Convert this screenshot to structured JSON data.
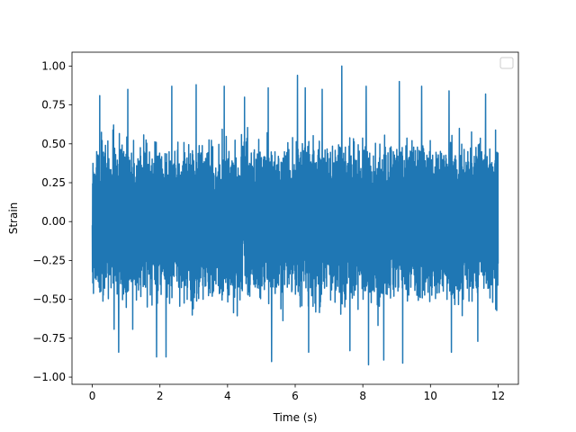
{
  "chart_data": {
    "type": "line",
    "title": "",
    "xlabel": "Time (s)",
    "ylabel": "Strain",
    "xlim": [
      -0.6,
      12.6
    ],
    "ylim": [
      -1.046,
      1.089
    ],
    "x_ticks": [
      0,
      2,
      4,
      6,
      8,
      10,
      12
    ],
    "x_tick_labels": [
      "0",
      "2",
      "4",
      "6",
      "8",
      "10",
      "12"
    ],
    "y_ticks": [
      -1.0,
      -0.75,
      -0.5,
      -0.25,
      0.0,
      0.25,
      0.5,
      0.75,
      1.0
    ],
    "y_tick_labels": [
      "−1.00",
      "−0.75",
      "−0.50",
      "−0.25",
      "0.00",
      "0.25",
      "0.50",
      "0.75",
      "1.00"
    ],
    "grid": false,
    "legend": {
      "placement": "upper right",
      "entries": []
    },
    "series": [
      {
        "color": "#1f77b4",
        "x_range": [
          0,
          12
        ],
        "approx_points": 2400,
        "typical_amplitude": 0.55,
        "max": 1.0,
        "min": -0.92,
        "peaks": [
          {
            "x": 0.22,
            "y": 0.81
          },
          {
            "x": 1.05,
            "y": 0.85
          },
          {
            "x": 2.35,
            "y": 0.87
          },
          {
            "x": 3.07,
            "y": 0.88
          },
          {
            "x": 3.9,
            "y": 0.87
          },
          {
            "x": 4.5,
            "y": 0.8
          },
          {
            "x": 5.2,
            "y": 0.86
          },
          {
            "x": 6.07,
            "y": 0.94
          },
          {
            "x": 6.3,
            "y": 0.86
          },
          {
            "x": 6.8,
            "y": 0.85
          },
          {
            "x": 7.38,
            "y": 1.0
          },
          {
            "x": 8.1,
            "y": 0.87
          },
          {
            "x": 9.08,
            "y": 0.9
          },
          {
            "x": 9.74,
            "y": 0.87
          },
          {
            "x": 10.55,
            "y": 0.84
          },
          {
            "x": 11.63,
            "y": 0.82
          }
        ],
        "troughs": [
          {
            "x": 0.78,
            "y": -0.84
          },
          {
            "x": 1.9,
            "y": -0.87
          },
          {
            "x": 2.18,
            "y": -0.87
          },
          {
            "x": 5.3,
            "y": -0.9
          },
          {
            "x": 6.4,
            "y": -0.84
          },
          {
            "x": 7.62,
            "y": -0.83
          },
          {
            "x": 8.17,
            "y": -0.92
          },
          {
            "x": 8.62,
            "y": -0.89
          },
          {
            "x": 9.18,
            "y": -0.91
          },
          {
            "x": 10.62,
            "y": -0.84
          },
          {
            "x": 11.4,
            "y": -0.77
          }
        ]
      }
    ]
  }
}
